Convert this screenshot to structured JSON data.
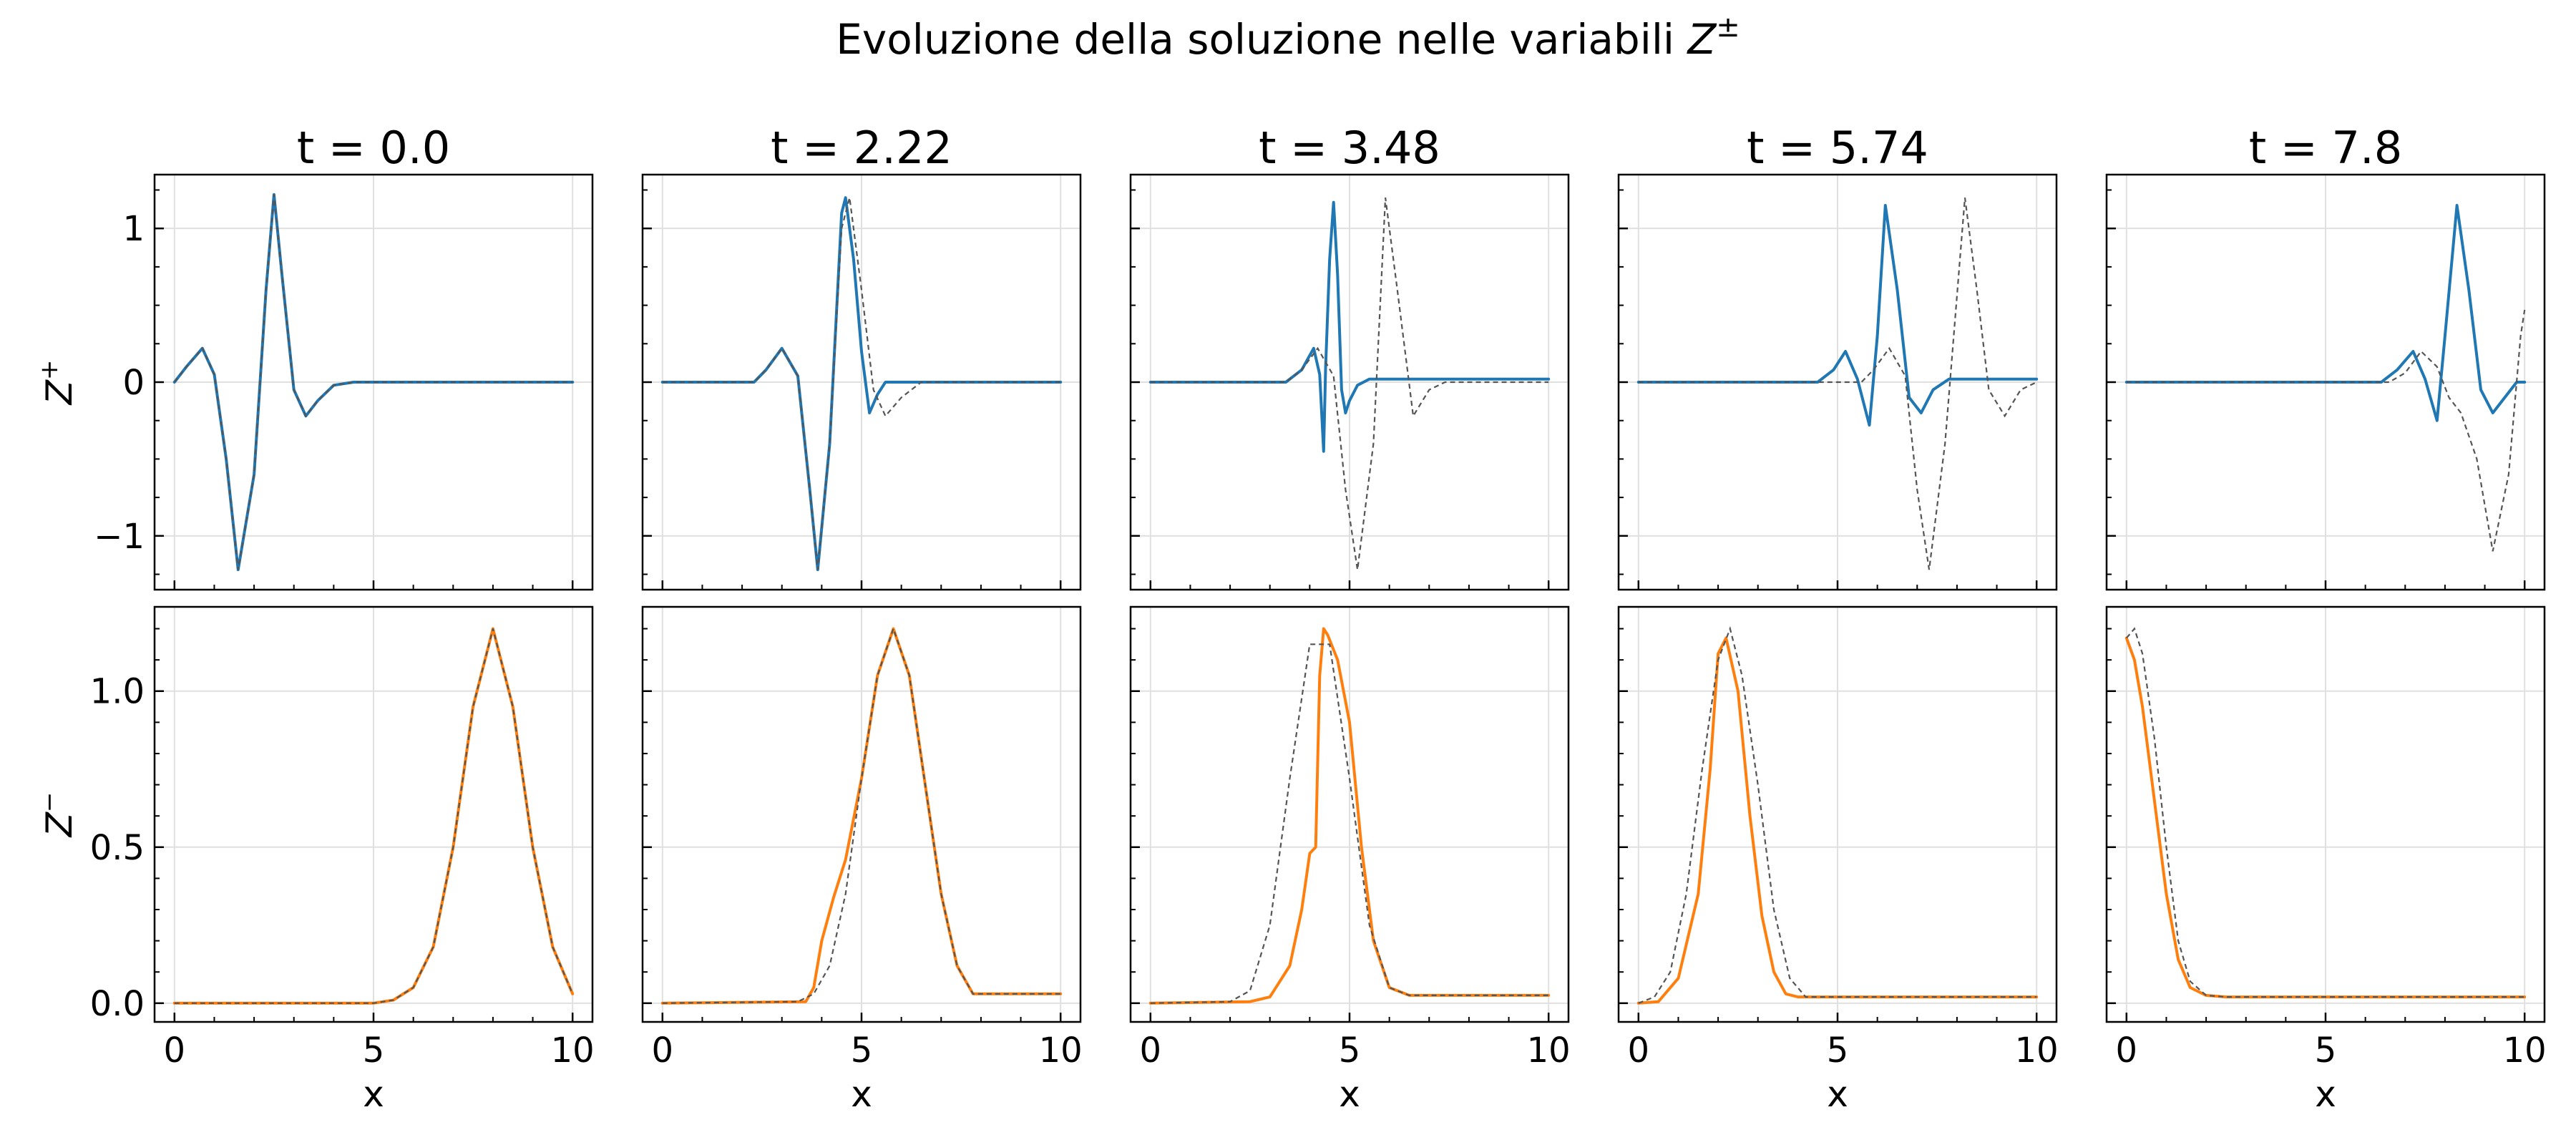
{
  "figure": {
    "title_main": "Evoluzione della soluzione nelle variabili ",
    "title_var": "Z",
    "title_sup": "±"
  },
  "colors": {
    "zplus": "#1f77b4",
    "zminus": "#ff7f0e",
    "reference": "#555555",
    "grid": "#e0e0e0",
    "axis": "#000000"
  },
  "chart_data": [
    {
      "type": "line",
      "title": "t = 0.0",
      "ylabel_top": "Z",
      "ylabel_top_sup": "+",
      "ylabel_bottom": "Z",
      "ylabel_bottom_sup": "−",
      "xlabel": "x",
      "xlim": [
        -0.5,
        10.5
      ],
      "xticks": [
        "0",
        "5",
        "10"
      ],
      "ylim_top": [
        -1.35,
        1.35
      ],
      "yticks_top": [
        "−1",
        "0",
        "1"
      ],
      "ylim_bottom": [
        -0.06,
        1.27
      ],
      "yticks_bottom": [
        "0.0",
        "0.5",
        "1.0"
      ],
      "grid": true,
      "zplus": {
        "x": [
          0,
          0.3,
          0.7,
          1.0,
          1.3,
          1.6,
          2.0,
          2.3,
          2.5,
          2.7,
          3.0,
          3.3,
          3.6,
          4.0,
          4.5,
          5.0,
          10.0
        ],
        "y": [
          0,
          0.1,
          0.22,
          0.05,
          -0.5,
          -1.22,
          -0.6,
          0.6,
          1.22,
          0.7,
          -0.05,
          -0.22,
          -0.12,
          -0.02,
          0,
          0,
          0
        ]
      },
      "zplus_ref": {
        "x": [
          0,
          0.3,
          0.7,
          1.0,
          1.3,
          1.6,
          2.0,
          2.3,
          2.5,
          2.7,
          3.0,
          3.3,
          3.6,
          4.0,
          4.5,
          5.0,
          10.0
        ],
        "y": [
          0,
          0.1,
          0.22,
          0.05,
          -0.5,
          -1.22,
          -0.6,
          0.6,
          1.22,
          0.7,
          -0.05,
          -0.22,
          -0.12,
          -0.02,
          0,
          0,
          0
        ]
      },
      "zminus": {
        "x": [
          0,
          5.0,
          5.5,
          6.0,
          6.5,
          7.0,
          7.5,
          8.0,
          8.5,
          9.0,
          9.5,
          10.0
        ],
        "y": [
          0,
          0,
          0.01,
          0.05,
          0.18,
          0.5,
          0.95,
          1.2,
          0.95,
          0.5,
          0.18,
          0.03
        ]
      },
      "zminus_ref": {
        "x": [
          0,
          5.0,
          5.5,
          6.0,
          6.5,
          7.0,
          7.5,
          8.0,
          8.5,
          9.0,
          9.5,
          10.0
        ],
        "y": [
          0,
          0,
          0.01,
          0.05,
          0.18,
          0.5,
          0.95,
          1.2,
          0.95,
          0.5,
          0.18,
          0.03
        ]
      }
    },
    {
      "type": "line",
      "title": "t = 2.22",
      "xlabel": "x",
      "xlim": [
        -0.5,
        10.5
      ],
      "xticks": [
        "0",
        "5",
        "10"
      ],
      "ylim_top": [
        -1.35,
        1.35
      ],
      "ylim_bottom": [
        -0.06,
        1.27
      ],
      "grid": true,
      "zplus": {
        "x": [
          0,
          2.3,
          2.6,
          3.0,
          3.4,
          3.7,
          3.9,
          4.2,
          4.5,
          4.6,
          4.8,
          5.0,
          5.2,
          5.4,
          5.6,
          6.0,
          10.0
        ],
        "y": [
          0,
          0,
          0.08,
          0.22,
          0.04,
          -0.7,
          -1.22,
          -0.4,
          1.1,
          1.2,
          0.8,
          0.2,
          -0.2,
          -0.08,
          0,
          0,
          0
        ]
      },
      "zplus_ref": {
        "x": [
          0,
          2.3,
          2.6,
          3.0,
          3.4,
          3.7,
          3.9,
          4.2,
          4.5,
          4.7,
          5.0,
          5.3,
          5.6,
          6.0,
          6.5,
          10.0
        ],
        "y": [
          0,
          0,
          0.08,
          0.22,
          0.04,
          -0.7,
          -1.22,
          -0.4,
          1.0,
          1.2,
          0.6,
          -0.05,
          -0.22,
          -0.1,
          0,
          0
        ]
      },
      "zminus": {
        "x": [
          0,
          3.6,
          3.8,
          4.0,
          4.3,
          4.6,
          5.0,
          5.4,
          5.8,
          6.2,
          6.6,
          7.0,
          7.4,
          7.8,
          10.0
        ],
        "y": [
          0,
          0.005,
          0.05,
          0.2,
          0.34,
          0.46,
          0.72,
          1.05,
          1.2,
          1.05,
          0.7,
          0.35,
          0.12,
          0.03,
          0.03
        ]
      },
      "zminus_ref": {
        "x": [
          0,
          3.4,
          3.8,
          4.2,
          4.6,
          5.0,
          5.4,
          5.8,
          6.2,
          6.6,
          7.0,
          7.4,
          7.8,
          10.0
        ],
        "y": [
          0,
          0.005,
          0.03,
          0.12,
          0.35,
          0.72,
          1.05,
          1.2,
          1.05,
          0.7,
          0.35,
          0.12,
          0.03,
          0.03
        ]
      }
    },
    {
      "type": "line",
      "title": "t = 3.48",
      "xlabel": "x",
      "xlim": [
        -0.5,
        10.5
      ],
      "xticks": [
        "0",
        "5",
        "10"
      ],
      "ylim_top": [
        -1.35,
        1.35
      ],
      "ylim_bottom": [
        -0.06,
        1.27
      ],
      "grid": true,
      "zplus": {
        "x": [
          0,
          3.4,
          3.8,
          4.1,
          4.25,
          4.35,
          4.4,
          4.5,
          4.6,
          4.7,
          4.8,
          4.9,
          5.0,
          5.2,
          5.5,
          6.0,
          10.0
        ],
        "y": [
          0,
          0,
          0.08,
          0.22,
          0.05,
          -0.45,
          0.1,
          0.8,
          1.17,
          0.7,
          -0.05,
          -0.2,
          -0.12,
          -0.02,
          0.02,
          0.02,
          0.02
        ]
      },
      "zplus_ref": {
        "x": [
          0,
          3.4,
          3.8,
          4.2,
          4.6,
          4.9,
          5.2,
          5.6,
          5.9,
          6.2,
          6.6,
          7.0,
          7.4,
          10.0
        ],
        "y": [
          0,
          0,
          0.08,
          0.22,
          0.04,
          -0.7,
          -1.22,
          -0.4,
          1.2,
          0.6,
          -0.22,
          -0.05,
          0,
          0
        ]
      },
      "zminus": {
        "x": [
          0,
          2.5,
          3.0,
          3.5,
          3.8,
          4.0,
          4.15,
          4.25,
          4.35,
          4.45,
          4.7,
          5.0,
          5.3,
          5.6,
          6.0,
          6.5,
          10.0
        ],
        "y": [
          0,
          0.005,
          0.02,
          0.12,
          0.3,
          0.48,
          0.5,
          1.05,
          1.2,
          1.18,
          1.1,
          0.9,
          0.5,
          0.2,
          0.05,
          0.025,
          0.025
        ]
      },
      "zminus_ref": {
        "x": [
          0,
          2.0,
          2.5,
          3.0,
          3.5,
          4.0,
          4.5,
          5.0,
          5.5,
          6.0,
          6.5,
          10.0
        ],
        "y": [
          0,
          0.005,
          0.04,
          0.25,
          0.72,
          1.15,
          1.15,
          0.72,
          0.25,
          0.05,
          0.025,
          0.025
        ]
      }
    },
    {
      "type": "line",
      "title": "t = 5.74",
      "xlabel": "x",
      "xlim": [
        -0.5,
        10.5
      ],
      "xticks": [
        "0",
        "5",
        "10"
      ],
      "ylim_top": [
        -1.35,
        1.35
      ],
      "ylim_bottom": [
        -0.06,
        1.27
      ],
      "grid": true,
      "zplus": {
        "x": [
          0,
          4.5,
          4.9,
          5.2,
          5.5,
          5.8,
          6.0,
          6.2,
          6.5,
          6.8,
          7.1,
          7.4,
          7.8,
          8.2,
          10.0
        ],
        "y": [
          0,
          0,
          0.08,
          0.2,
          0.02,
          -0.28,
          0.3,
          1.15,
          0.6,
          -0.1,
          -0.2,
          -0.05,
          0.02,
          0.02,
          0.02
        ]
      },
      "zplus_ref": {
        "x": [
          0,
          5.6,
          5.9,
          6.3,
          6.7,
          7.0,
          7.3,
          7.7,
          8.2,
          8.5,
          8.8,
          9.2,
          9.6,
          10.0
        ],
        "y": [
          0,
          0,
          0.08,
          0.22,
          0.04,
          -0.7,
          -1.22,
          -0.4,
          1.2,
          0.6,
          -0.05,
          -0.22,
          -0.05,
          0
        ]
      },
      "zminus": {
        "x": [
          0,
          0.5,
          1.0,
          1.5,
          1.8,
          2.0,
          2.2,
          2.5,
          2.8,
          3.1,
          3.4,
          3.7,
          4.0,
          10.0
        ],
        "y": [
          0,
          0.005,
          0.08,
          0.35,
          0.75,
          1.12,
          1.17,
          1.0,
          0.6,
          0.28,
          0.1,
          0.03,
          0.02,
          0.02
        ]
      },
      "zminus_ref": {
        "x": [
          0,
          0.4,
          0.8,
          1.2,
          1.6,
          2.0,
          2.3,
          2.6,
          3.0,
          3.4,
          3.8,
          4.2,
          10.0
        ],
        "y": [
          0,
          0.02,
          0.1,
          0.35,
          0.75,
          1.1,
          1.2,
          1.05,
          0.7,
          0.3,
          0.08,
          0.02,
          0.02
        ]
      }
    },
    {
      "type": "line",
      "title": "t = 7.8",
      "xlabel": "x",
      "xlim": [
        -0.5,
        10.5
      ],
      "xticks": [
        "0",
        "5",
        "10"
      ],
      "ylim_top": [
        -1.35,
        1.35
      ],
      "ylim_bottom": [
        -0.06,
        1.27
      ],
      "grid": true,
      "zplus": {
        "x": [
          0,
          6.4,
          6.8,
          7.2,
          7.5,
          7.8,
          8.0,
          8.3,
          8.6,
          8.9,
          9.2,
          9.5,
          9.8,
          10.0
        ],
        "y": [
          0,
          0,
          0.08,
          0.2,
          0.02,
          -0.25,
          0.3,
          1.15,
          0.6,
          -0.05,
          -0.2,
          -0.1,
          0,
          0
        ]
      },
      "zplus_ref": {
        "x": [
          0,
          6.6,
          7.0,
          7.4,
          7.8,
          8.1,
          8.4,
          8.8,
          9.2,
          9.6,
          9.9,
          10.0
        ],
        "y": [
          0,
          0,
          0.06,
          0.2,
          0.1,
          -0.1,
          -0.2,
          -0.5,
          -1.1,
          -0.6,
          0.3,
          0.47
        ]
      },
      "zminus": {
        "x": [
          0,
          0.2,
          0.4,
          0.7,
          1.0,
          1.3,
          1.6,
          2.0,
          2.5,
          10.0
        ],
        "y": [
          1.17,
          1.1,
          0.95,
          0.65,
          0.35,
          0.14,
          0.05,
          0.025,
          0.02,
          0.02
        ]
      },
      "zminus_ref": {
        "x": [
          0,
          0.2,
          0.4,
          0.7,
          1.0,
          1.3,
          1.6,
          2.0,
          2.5,
          10.0
        ],
        "y": [
          1.17,
          1.2,
          1.12,
          0.85,
          0.5,
          0.2,
          0.07,
          0.025,
          0.02,
          0.02
        ]
      }
    }
  ]
}
